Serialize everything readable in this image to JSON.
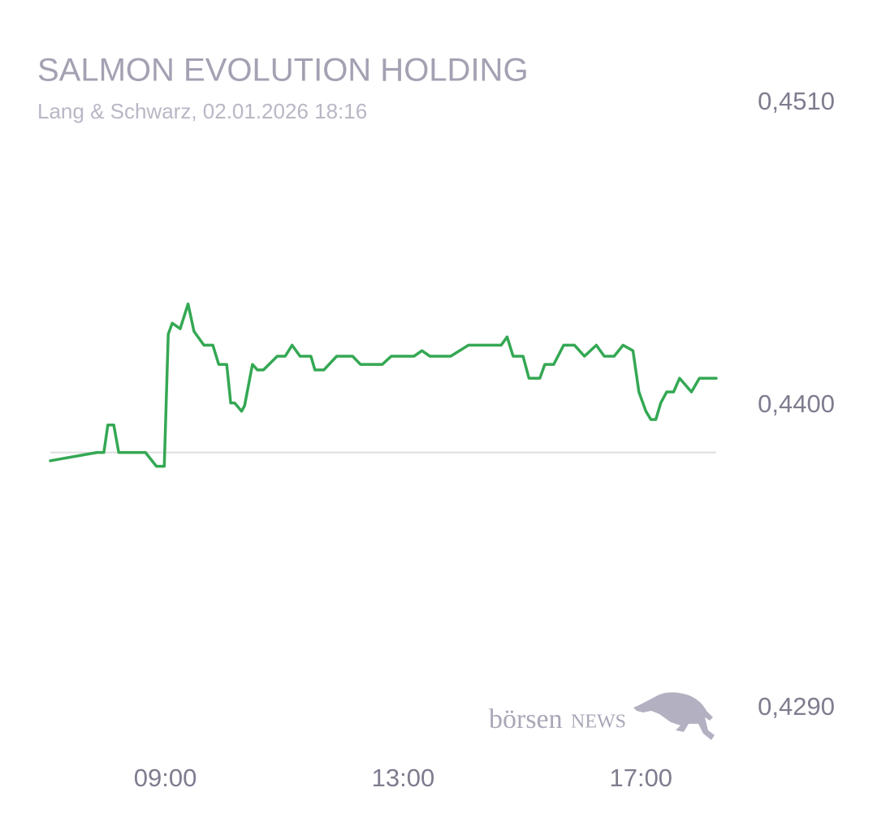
{
  "chart_data": {
    "type": "line",
    "title": "SALMON EVOLUTION HOLDING",
    "subtitle": "Lang & Schwarz, 02.01.2026 18:16",
    "brand": {
      "prefix": "börsen",
      "suffix": "NEWS"
    },
    "color": "#34a853",
    "reference_line": 0.4383,
    "reference_color": "#dddddd",
    "x": [
      "07:04",
      "07:51",
      "07:58",
      "08:02",
      "08:08",
      "08:13",
      "08:40",
      "08:51",
      "08:59",
      "09:03",
      "09:07",
      "09:15",
      "09:23",
      "09:29",
      "09:39",
      "09:48",
      "09:54",
      "10:02",
      "10:06",
      "10:10",
      "10:17",
      "10:20",
      "10:28",
      "10:33",
      "10:39",
      "10:53",
      "11:01",
      "11:08",
      "11:16",
      "11:27",
      "11:31",
      "11:40",
      "11:53",
      "12:09",
      "12:17",
      "12:39",
      "12:48",
      "13:11",
      "13:19",
      "13:27",
      "13:48",
      "14:06",
      "14:39",
      "14:45",
      "14:51",
      "15:01",
      "15:07",
      "15:18",
      "15:23",
      "15:32",
      "15:42",
      "15:53",
      "16:03",
      "16:15",
      "16:23",
      "16:33",
      "16:42",
      "16:52",
      "16:58",
      "17:05",
      "17:10",
      "17:15",
      "17:20",
      "17:26",
      "17:33",
      "17:39",
      "17:51",
      "17:59",
      "18:16"
    ],
    "values": [
      0.438,
      0.4383,
      0.4383,
      0.4393,
      0.4393,
      0.4383,
      0.4383,
      0.4378,
      0.4378,
      0.4426,
      0.443,
      0.4428,
      0.4437,
      0.4427,
      0.4422,
      0.4422,
      0.4415,
      0.4415,
      0.4401,
      0.4401,
      0.4398,
      0.44,
      0.4415,
      0.4413,
      0.4413,
      0.4418,
      0.4418,
      0.4422,
      0.4418,
      0.4418,
      0.4413,
      0.4413,
      0.4418,
      0.4418,
      0.4415,
      0.4415,
      0.4418,
      0.4418,
      0.442,
      0.4418,
      0.4418,
      0.4422,
      0.4422,
      0.4425,
      0.4418,
      0.4418,
      0.441,
      0.441,
      0.4415,
      0.4415,
      0.4422,
      0.4422,
      0.4418,
      0.4422,
      0.4418,
      0.4418,
      0.4422,
      0.442,
      0.4405,
      0.4398,
      0.4395,
      0.4395,
      0.4401,
      0.4405,
      0.4405,
      0.441,
      0.4405,
      0.441,
      0.441
    ],
    "xlim": [
      "07:04",
      "18:16"
    ],
    "xticks": [
      "09:00",
      "13:00",
      "17:00"
    ],
    "ylim": [
      0.429,
      0.451
    ],
    "yticks": [
      {
        "value": 0.429,
        "label": "0,4290"
      },
      {
        "value": 0.44,
        "label": "0,4400"
      },
      {
        "value": 0.451,
        "label": "0,4510"
      }
    ]
  }
}
